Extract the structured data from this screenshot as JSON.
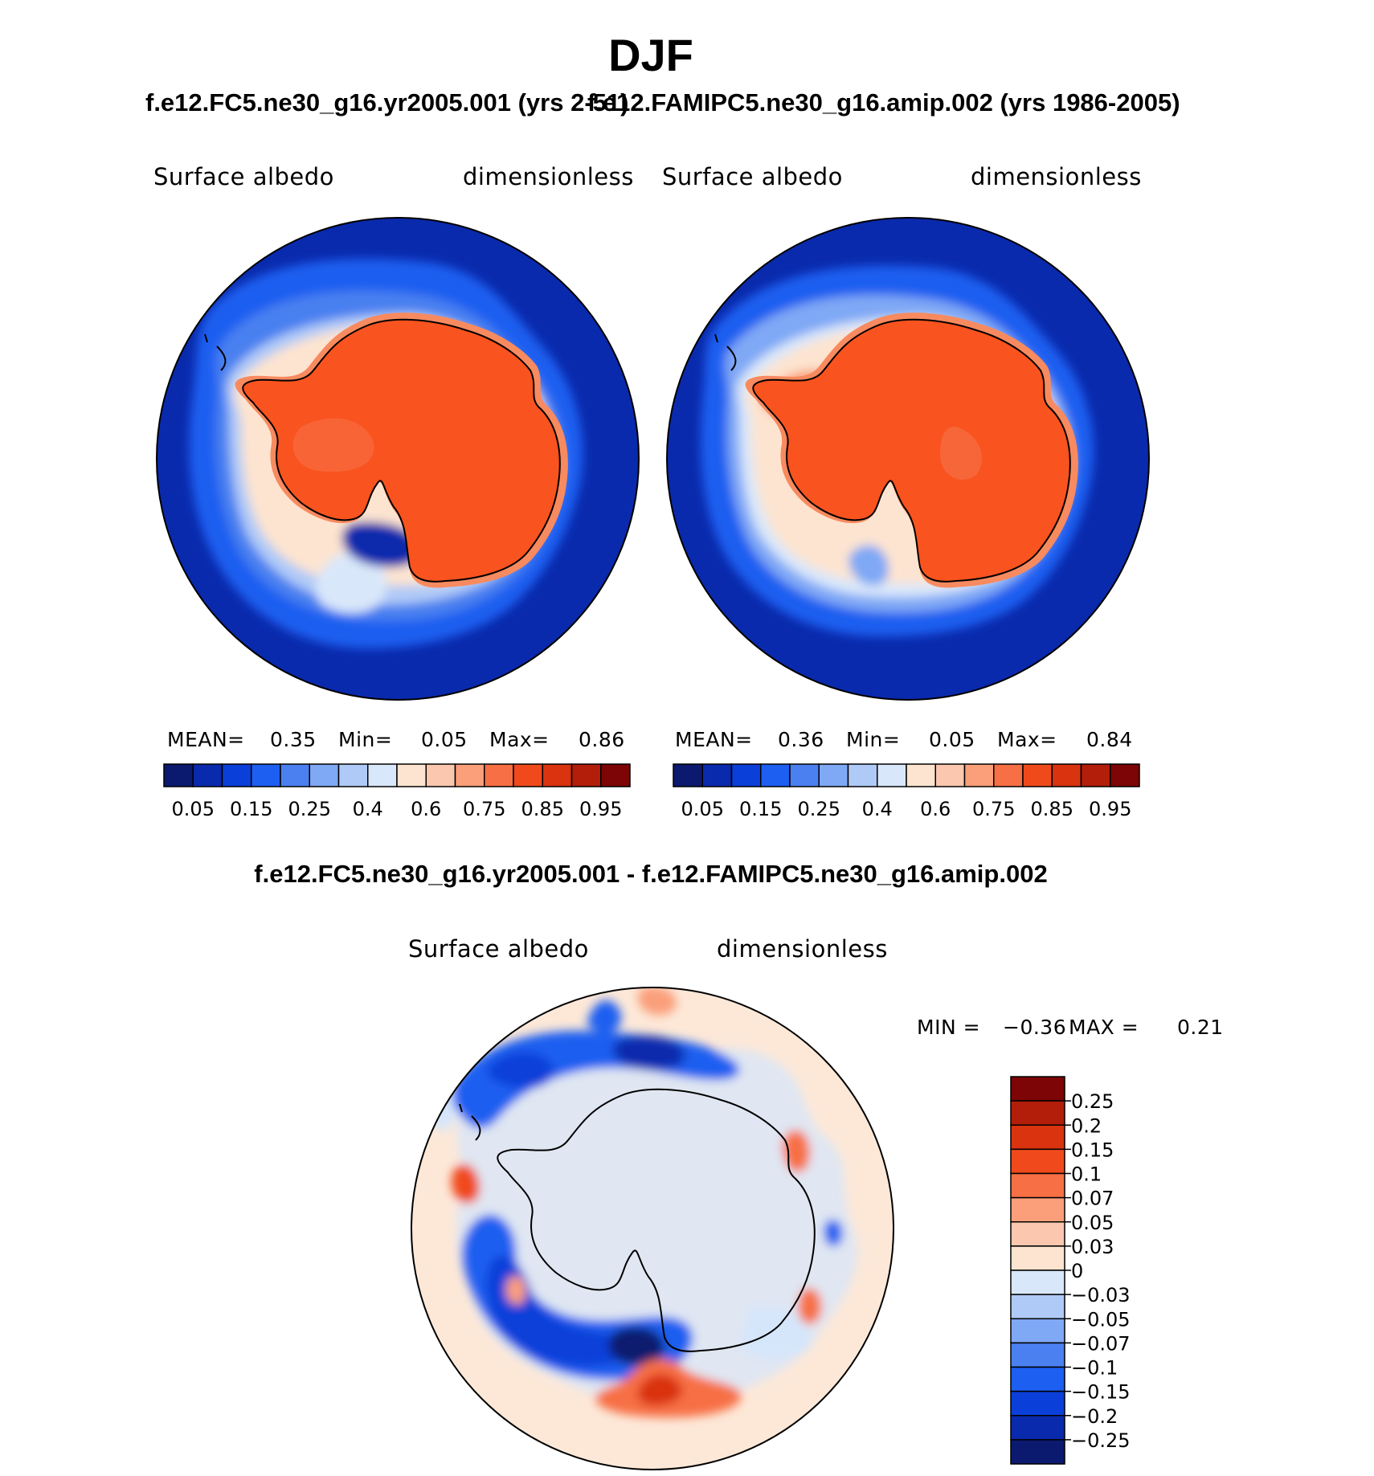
{
  "figure": {
    "title": "DJF",
    "left_title": "f.e12.FC5.ne30_g16.yr2005.001 (yrs 2-51)",
    "right_title": "f.e12.FAMIPC5.ne30_g16.amip.002 (yrs 1986-2005)",
    "diff_title": "f.e12.FC5.ne30_g16.yr2005.001 - f.e12.FAMIPC5.ne30_g16.amip.002"
  },
  "panels": {
    "left": {
      "variable": "Surface albedo",
      "units": "dimensionless",
      "mean_label": "MEAN=",
      "mean": "0.35",
      "min_label": "Min=",
      "min": "0.05",
      "max_label": "Max=",
      "max": "0.86"
    },
    "right": {
      "variable": "Surface albedo",
      "units": "dimensionless",
      "mean_label": "MEAN=",
      "mean": "0.36",
      "min_label": "Min=",
      "min": "0.05",
      "max_label": "Max=",
      "max": "0.84"
    },
    "diff": {
      "variable": "Surface albedo",
      "units": "dimensionless",
      "min_label": "MIN =",
      "min": "−0.36",
      "max_label": "MAX =",
      "max": "0.21"
    }
  },
  "colorbars": {
    "abs_colors": [
      "#0b1a6e",
      "#0a2aad",
      "#0b3fd9",
      "#1d5ff0",
      "#4a80f0",
      "#7fa8f5",
      "#b0caf7",
      "#d9e7fa",
      "#fde4d0",
      "#fbc7ae",
      "#fa9f7a",
      "#f76f45",
      "#f04a1c",
      "#d9330f",
      "#b21e0a",
      "#7d0505"
    ],
    "abs_ticks": [
      "0.05",
      "0.15",
      "0.25",
      "0.4",
      "0.6",
      "0.75",
      "0.85",
      "0.95"
    ],
    "diff_colors": [
      "#0b1a6e",
      "#0a2aad",
      "#0b3fd9",
      "#1d5ff0",
      "#4a80f0",
      "#7fa8f5",
      "#b0caf7",
      "#d9e7fa",
      "#fde4d0",
      "#fbc7ae",
      "#fa9f7a",
      "#f76f45",
      "#f04a1c",
      "#d9330f",
      "#b21e0a",
      "#7d0505"
    ],
    "diff_ticks": [
      "0.25",
      "0.2",
      "0.15",
      "0.1",
      "0.07",
      "0.05",
      "0.03",
      "0",
      "−0.03",
      "−0.05",
      "−0.07",
      "−0.1",
      "−0.15",
      "−0.2",
      "−0.25"
    ]
  },
  "map_colors": {
    "ocean": "#0a2aad",
    "ocean_light": "#1d5ff0",
    "sea_ice_mid": "#7fa8f5",
    "sea_ice_light": "#d9e7fa",
    "ice_sheet": "#f9531f",
    "ice_edge": "#f88a5f",
    "diff_bg": "#fde8d8",
    "diff_light_blue": "#d5e6fb",
    "coast": "#000000"
  }
}
